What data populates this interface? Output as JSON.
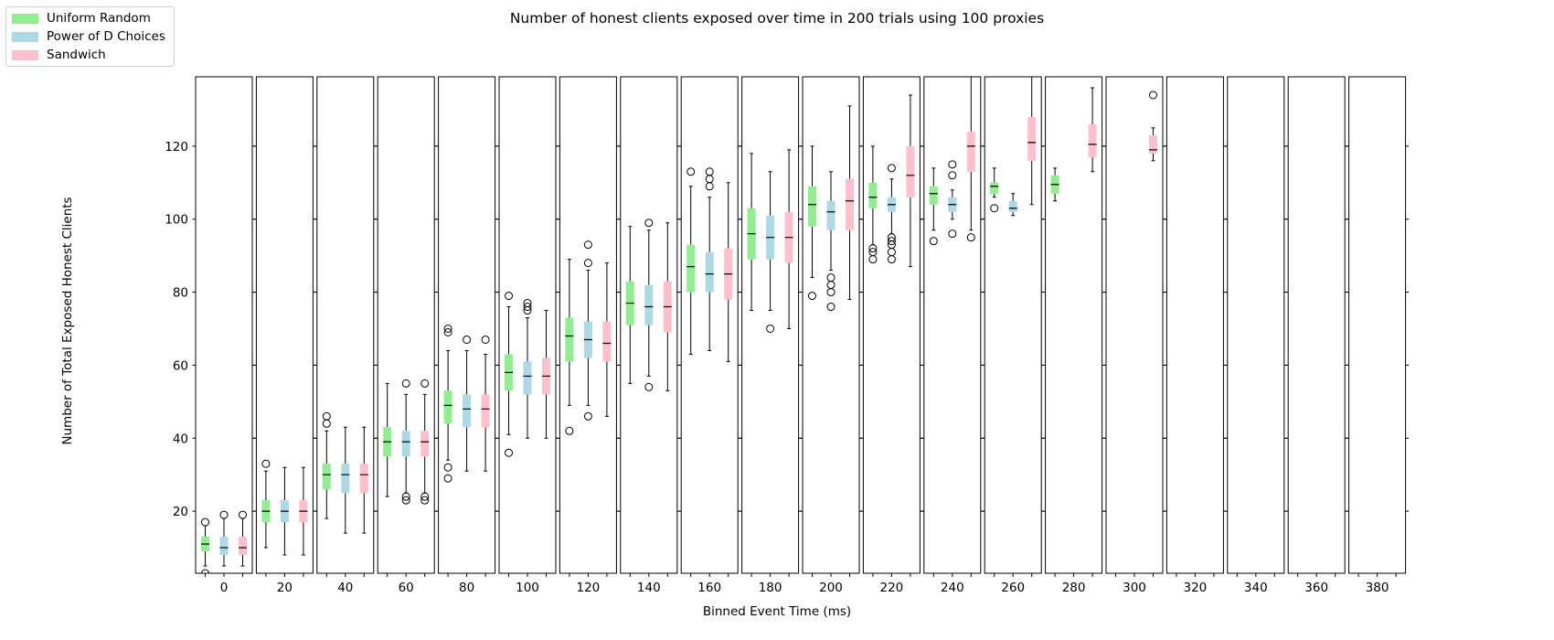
{
  "chart_data": {
    "type": "box",
    "title": "Number of honest clients exposed over time in 200 trials using 100 proxies",
    "xlabel": "Binned Event Time (ms)",
    "ylabel": "Number of Total Exposed Honest Clients",
    "ylim": [
      3,
      139
    ],
    "yticks": [
      20,
      40,
      60,
      80,
      100,
      120
    ],
    "legend_position": "upper-left",
    "series": [
      {
        "name": "Uniform Random",
        "color": "#90ee90"
      },
      {
        "name": "Power of D Choices",
        "color": "#add8e6"
      },
      {
        "name": "Sandwich",
        "color": "#ffc0cb"
      }
    ],
    "bins": [
      {
        "label": "0",
        "boxes": [
          {
            "min": 5,
            "q1": 9,
            "median": 11,
            "q3": 13,
            "max": 16,
            "outliers": [
              17,
              3
            ]
          },
          {
            "min": 5,
            "q1": 8,
            "median": 10,
            "q3": 13,
            "max": 18,
            "outliers": [
              19
            ]
          },
          {
            "min": 5,
            "q1": 8,
            "median": 10,
            "q3": 13,
            "max": 18,
            "outliers": [
              19
            ]
          }
        ]
      },
      {
        "label": "20",
        "boxes": [
          {
            "min": 10,
            "q1": 17,
            "median": 20,
            "q3": 23,
            "max": 31,
            "outliers": [
              33
            ]
          },
          {
            "min": 8,
            "q1": 17,
            "median": 20,
            "q3": 23,
            "max": 32,
            "outliers": []
          },
          {
            "min": 8,
            "q1": 17,
            "median": 20,
            "q3": 23,
            "max": 32,
            "outliers": []
          }
        ]
      },
      {
        "label": "40",
        "boxes": [
          {
            "min": 18,
            "q1": 26,
            "median": 30,
            "q3": 33,
            "max": 42,
            "outliers": [
              44,
              46
            ]
          },
          {
            "min": 14,
            "q1": 25,
            "median": 30,
            "q3": 33,
            "max": 43,
            "outliers": []
          },
          {
            "min": 14,
            "q1": 25,
            "median": 30,
            "q3": 33,
            "max": 43,
            "outliers": []
          }
        ]
      },
      {
        "label": "60",
        "boxes": [
          {
            "min": 24,
            "q1": 35,
            "median": 39,
            "q3": 43,
            "max": 55,
            "outliers": []
          },
          {
            "min": 25,
            "q1": 35,
            "median": 39,
            "q3": 42,
            "max": 52,
            "outliers": [
              55,
              24,
              23
            ]
          },
          {
            "min": 25,
            "q1": 35,
            "median": 39,
            "q3": 42,
            "max": 52,
            "outliers": [
              55,
              24,
              23
            ]
          }
        ]
      },
      {
        "label": "80",
        "boxes": [
          {
            "min": 34,
            "q1": 44,
            "median": 49,
            "q3": 53,
            "max": 64,
            "outliers": [
              69,
              70,
              32,
              29
            ]
          },
          {
            "min": 31,
            "q1": 43,
            "median": 48,
            "q3": 52,
            "max": 64,
            "outliers": [
              67
            ]
          },
          {
            "min": 31,
            "q1": 43,
            "median": 48,
            "q3": 52,
            "max": 63,
            "outliers": [
              67
            ]
          }
        ]
      },
      {
        "label": "100",
        "boxes": [
          {
            "min": 41,
            "q1": 53,
            "median": 58,
            "q3": 63,
            "max": 76,
            "outliers": [
              79,
              36
            ]
          },
          {
            "min": 40,
            "q1": 52,
            "median": 57,
            "q3": 61,
            "max": 73,
            "outliers": [
              75,
              76,
              77
            ]
          },
          {
            "min": 40,
            "q1": 52,
            "median": 57,
            "q3": 62,
            "max": 75,
            "outliers": []
          }
        ]
      },
      {
        "label": "120",
        "boxes": [
          {
            "min": 49,
            "q1": 61,
            "median": 68,
            "q3": 73,
            "max": 89,
            "outliers": [
              42
            ]
          },
          {
            "min": 49,
            "q1": 62,
            "median": 67,
            "q3": 72,
            "max": 86,
            "outliers": [
              88,
              93,
              46
            ]
          },
          {
            "min": 46,
            "q1": 61,
            "median": 66,
            "q3": 72,
            "max": 88,
            "outliers": []
          }
        ]
      },
      {
        "label": "140",
        "boxes": [
          {
            "min": 55,
            "q1": 71,
            "median": 77,
            "q3": 83,
            "max": 98,
            "outliers": []
          },
          {
            "min": 57,
            "q1": 71,
            "median": 76,
            "q3": 82,
            "max": 97,
            "outliers": [
              99,
              54
            ]
          },
          {
            "min": 53,
            "q1": 69,
            "median": 76,
            "q3": 83,
            "max": 99,
            "outliers": []
          }
        ]
      },
      {
        "label": "160",
        "boxes": [
          {
            "min": 63,
            "q1": 80,
            "median": 87,
            "q3": 93,
            "max": 109,
            "outliers": [
              113
            ]
          },
          {
            "min": 64,
            "q1": 80,
            "median": 85,
            "q3": 91,
            "max": 106,
            "outliers": [
              109,
              111,
              113
            ]
          },
          {
            "min": 61,
            "q1": 78,
            "median": 85,
            "q3": 92,
            "max": 110,
            "outliers": []
          }
        ]
      },
      {
        "label": "180",
        "boxes": [
          {
            "min": 75,
            "q1": 89,
            "median": 96,
            "q3": 103,
            "max": 118,
            "outliers": []
          },
          {
            "min": 75,
            "q1": 89,
            "median": 95,
            "q3": 101,
            "max": 113,
            "outliers": [
              70
            ]
          },
          {
            "min": 70,
            "q1": 88,
            "median": 95,
            "q3": 102,
            "max": 119,
            "outliers": []
          }
        ]
      },
      {
        "label": "200",
        "boxes": [
          {
            "min": 84,
            "q1": 98,
            "median": 104,
            "q3": 109,
            "max": 120,
            "outliers": [
              79
            ]
          },
          {
            "min": 86,
            "q1": 97,
            "median": 102,
            "q3": 105,
            "max": 113,
            "outliers": [
              84,
              82,
              80,
              76
            ]
          },
          {
            "min": 78,
            "q1": 97,
            "median": 105,
            "q3": 111,
            "max": 131,
            "outliers": []
          }
        ]
      },
      {
        "label": "220",
        "boxes": [
          {
            "min": 93,
            "q1": 103,
            "median": 106,
            "q3": 110,
            "max": 120,
            "outliers": [
              92,
              91,
              89
            ]
          },
          {
            "min": 96,
            "q1": 102,
            "median": 104,
            "q3": 106,
            "max": 111,
            "outliers": [
              114,
              95,
              94,
              93,
              91,
              89
            ]
          },
          {
            "min": 87,
            "q1": 106,
            "median": 112,
            "q3": 120,
            "max": 134,
            "outliers": []
          }
        ]
      },
      {
        "label": "240",
        "boxes": [
          {
            "min": 97,
            "q1": 104,
            "median": 107,
            "q3": 109,
            "max": 114,
            "outliers": [
              94
            ]
          },
          {
            "min": 100,
            "q1": 102,
            "median": 104,
            "q3": 106,
            "max": 108,
            "outliers": [
              112,
              115,
              96
            ]
          },
          {
            "min": 97,
            "q1": 113,
            "median": 120,
            "q3": 124,
            "max": 139,
            "outliers": [
              95
            ]
          }
        ]
      },
      {
        "label": "260",
        "boxes": [
          {
            "min": 106,
            "q1": 107,
            "median": 109,
            "q3": 110,
            "max": 114,
            "outliers": [
              103
            ]
          },
          {
            "min": 101,
            "q1": 102,
            "median": 103,
            "q3": 105,
            "max": 107,
            "outliers": []
          },
          {
            "min": 104,
            "q1": 116,
            "median": 121,
            "q3": 128,
            "max": 139,
            "outliers": []
          }
        ]
      },
      {
        "label": "280",
        "boxes": [
          {
            "min": 105,
            "q1": 107,
            "median": 109.5,
            "q3": 112,
            "max": 114,
            "outliers": []
          },
          null,
          {
            "min": 113,
            "q1": 117,
            "median": 120.5,
            "q3": 126,
            "max": 136,
            "outliers": []
          }
        ]
      },
      {
        "label": "300",
        "boxes": [
          null,
          null,
          {
            "min": 116,
            "q1": 118,
            "median": 119,
            "q3": 123,
            "max": 125,
            "outliers": [
              134
            ]
          }
        ]
      },
      {
        "label": "320",
        "boxes": [
          null,
          null,
          null
        ]
      },
      {
        "label": "340",
        "boxes": [
          null,
          null,
          null
        ]
      },
      {
        "label": "360",
        "boxes": [
          null,
          null,
          null
        ]
      },
      {
        "label": "380",
        "boxes": [
          null,
          null,
          null
        ]
      }
    ]
  }
}
